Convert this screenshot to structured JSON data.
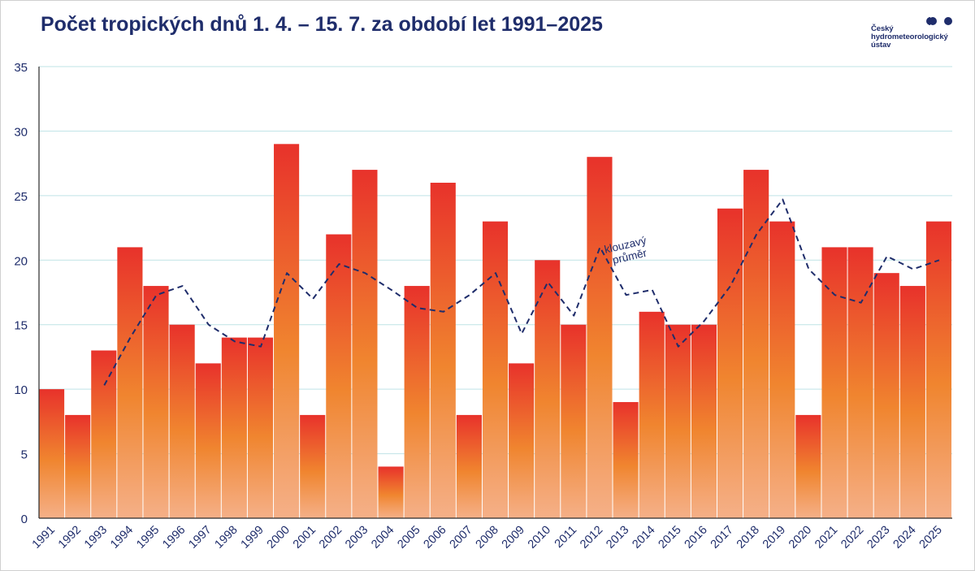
{
  "header": {
    "title": "Počet tropických dnů 1. 4. – 15. 7. za období let 1991–2025"
  },
  "logo": {
    "lines": [
      "Český",
      "hydrometeorologický",
      "ústav"
    ]
  },
  "colors": {
    "title": "#1f2d6b",
    "bar_top": "#e8322b",
    "bar_mid": "#f0852f",
    "bar_bottom": "#f5b088",
    "moving_avg": "#1f2d6b",
    "grid": "#bfe3e6",
    "axis_text": "#1f2d6b"
  },
  "chart_data": {
    "type": "bar",
    "title": "Počet tropických dnů 1. 4. – 15. 7. za období let 1991–2025",
    "xlabel": "",
    "ylabel": "",
    "ylim": [
      0,
      35
    ],
    "yticks": [
      0,
      5,
      10,
      15,
      20,
      25,
      30,
      35
    ],
    "grid": true,
    "categories": [
      "1991",
      "1992",
      "1993",
      "1994",
      "1995",
      "1996",
      "1997",
      "1998",
      "1999",
      "2000",
      "2001",
      "2002",
      "2003",
      "2004",
      "2005",
      "2006",
      "2007",
      "2008",
      "2009",
      "2010",
      "2011",
      "2012",
      "2013",
      "2014",
      "2015",
      "2016",
      "2017",
      "2018",
      "2019",
      "2020",
      "2021",
      "2022",
      "2023",
      "2024",
      "2025"
    ],
    "series": [
      {
        "type": "bar",
        "values": [
          10,
          8,
          13,
          21,
          18,
          15,
          12,
          14,
          14,
          29,
          8,
          22,
          27,
          4,
          18,
          26,
          8,
          23,
          12,
          20,
          15,
          28,
          9,
          16,
          15,
          15,
          24,
          27,
          23,
          8,
          21,
          21,
          19,
          18,
          23
        ]
      },
      {
        "name": "klouzavý průměr",
        "type": "line",
        "style": "dashed",
        "values": [
          null,
          null,
          10.3,
          14,
          17.3,
          18,
          15,
          13.7,
          13.3,
          19,
          17,
          19.7,
          19,
          17.7,
          16.3,
          16,
          17.3,
          19,
          14.3,
          18.3,
          15.7,
          21,
          17.3,
          17.7,
          13.3,
          15.3,
          18,
          22,
          24.7,
          19.3,
          17.3,
          16.7,
          20.3,
          19.3,
          20
        ]
      }
    ],
    "annotations": [
      {
        "text": "klouzavý průměr",
        "series": "moving average"
      }
    ]
  }
}
